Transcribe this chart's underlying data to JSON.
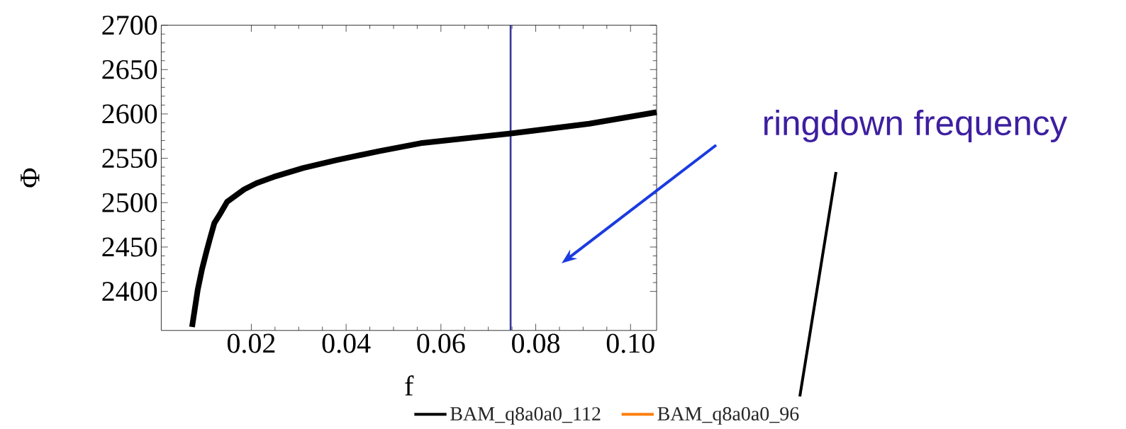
{
  "chart_data": {
    "type": "line",
    "xlabel": "f",
    "ylabel": "Φ",
    "x": [
      0.0075,
      0.0087,
      0.0096,
      0.0105,
      0.0112,
      0.0122,
      0.0136,
      0.0149,
      0.0167,
      0.0185,
      0.0211,
      0.0247,
      0.0309,
      0.038,
      0.0469,
      0.0557,
      0.0748,
      0.0913,
      0.1055
    ],
    "series": [
      {
        "name": "BAM_q8a0a0_112",
        "color": "#000000",
        "values": [
          2360,
          2402,
          2425,
          2444,
          2458,
          2477,
          2489,
          2501,
          2508,
          2515,
          2522,
          2529,
          2539,
          2548,
          2558,
          2567,
          2578,
          2589,
          2602
        ]
      },
      {
        "name": "BAM_q8a0a0_96",
        "color": "#ff7f0e",
        "values": [
          null,
          null,
          null,
          null,
          null,
          null,
          null,
          null,
          null,
          null,
          null,
          null,
          null,
          null,
          null,
          null,
          null,
          null,
          null
        ]
      }
    ],
    "xlim": [
      0.001,
      0.1055
    ],
    "ylim": [
      2356,
      2700
    ],
    "xticks": [
      0.02,
      0.04,
      0.06,
      0.08,
      {
        "value": 0.1,
        "label": "0.10"
      }
    ],
    "yticks": [
      2400,
      2450,
      2500,
      2550,
      2600,
      2650,
      2700
    ],
    "ref_lines": [
      {
        "axis": "x",
        "value": 0.0747,
        "label": "ringdown frequency",
        "color": "#3a3a9a"
      }
    ],
    "legend": "bottom"
  }
}
